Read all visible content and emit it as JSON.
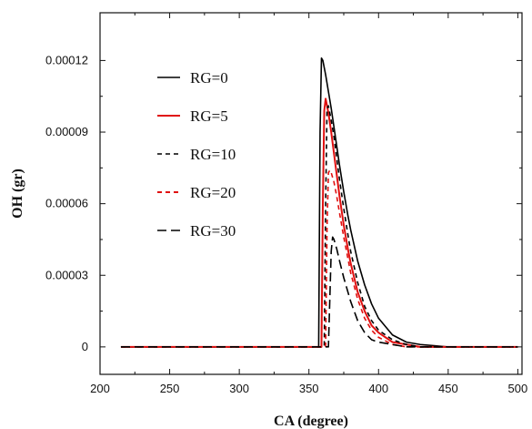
{
  "chart_data": {
    "type": "line",
    "title": "",
    "xlabel": "CA (degree)",
    "ylabel": "OH (gr)",
    "xlim": [
      200,
      503
    ],
    "ylim": [
      -1.15e-05,
      0.00014
    ],
    "x_ticks": [
      200,
      250,
      300,
      350,
      400,
      450,
      500
    ],
    "x_tick_labels": [
      "200",
      "250",
      "300",
      "350",
      "400",
      "450",
      "500"
    ],
    "y_ticks": [
      0,
      3e-05,
      6e-05,
      9e-05,
      0.00012
    ],
    "y_tick_labels": [
      "0",
      "0.00003",
      "0.00006",
      "0.00009",
      "0.00012"
    ],
    "grid": false,
    "legend_position": "top-left",
    "series": [
      {
        "name": "RG=0",
        "color": "#000000",
        "dash": "solid",
        "x": [
          215,
          250,
          300,
          350,
          357,
          358,
          359,
          360,
          362,
          364,
          366,
          368,
          370,
          372,
          375,
          378,
          380,
          385,
          390,
          395,
          400,
          410,
          420,
          430,
          440,
          450,
          470,
          500
        ],
        "y": [
          0,
          0,
          0,
          0,
          0,
          9e-05,
          0.000121,
          0.00012,
          0.000114,
          0.000107,
          0.0001,
          9.2e-05,
          8.4e-05,
          7.6e-05,
          6.5e-05,
          5.5e-05,
          4.9e-05,
          3.6e-05,
          2.6e-05,
          1.8e-05,
          1.2e-05,
          5e-06,
          2e-06,
          1e-06,
          5e-07,
          0,
          0,
          0
        ]
      },
      {
        "name": "RG=5",
        "color": "#e01010",
        "dash": "solid",
        "x": [
          215,
          250,
          300,
          350,
          359,
          360,
          361,
          362,
          364,
          366,
          368,
          370,
          372,
          375,
          378,
          380,
          385,
          390,
          395,
          400,
          410,
          420,
          430,
          450,
          500
        ],
        "y": [
          0,
          0,
          0,
          0,
          0,
          6e-05,
          9.9e-05,
          0.000104,
          9.8e-05,
          9e-05,
          8.1e-05,
          7.2e-05,
          6.3e-05,
          5.1e-05,
          4.1e-05,
          3.5e-05,
          2.3e-05,
          1.5e-05,
          9e-06,
          6e-06,
          2e-06,
          1e-06,
          0,
          0,
          0
        ]
      },
      {
        "name": "RG=10",
        "color": "#000000",
        "dash": "short-dash",
        "x": [
          215,
          250,
          300,
          350,
          361,
          362,
          363,
          364,
          366,
          368,
          370,
          372,
          375,
          378,
          380,
          385,
          390,
          395,
          400,
          410,
          420,
          430,
          450,
          500
        ],
        "y": [
          0,
          0,
          0,
          0,
          0,
          6e-05,
          0.0001,
          0.000101,
          9.5e-05,
          8.8e-05,
          7.9e-05,
          7e-05,
          5.8e-05,
          4.7e-05,
          4e-05,
          2.7e-05,
          1.7e-05,
          1.1e-05,
          7e-06,
          3e-06,
          1e-06,
          0,
          0,
          0
        ]
      },
      {
        "name": "RG=20",
        "color": "#e01010",
        "dash": "short-dash",
        "x": [
          215,
          250,
          300,
          350,
          362,
          363,
          364,
          365,
          366,
          368,
          370,
          372,
          375,
          378,
          380,
          385,
          390,
          395,
          400,
          410,
          420,
          450,
          500
        ],
        "y": [
          0,
          0,
          0,
          0,
          0,
          5e-05,
          7.3e-05,
          7.4e-05,
          7.3e-05,
          6.9e-05,
          6.3e-05,
          5.6e-05,
          4.6e-05,
          3.7e-05,
          3.1e-05,
          2e-05,
          1.2e-05,
          7e-06,
          4e-06,
          1e-06,
          0,
          0,
          0
        ]
      },
      {
        "name": "RG=30",
        "color": "#000000",
        "dash": "long-dash",
        "x": [
          215,
          250,
          300,
          350,
          364,
          365,
          366,
          367,
          368,
          370,
          372,
          375,
          378,
          380,
          385,
          390,
          395,
          400,
          410,
          420,
          450,
          500
        ],
        "y": [
          0,
          0,
          0,
          0,
          0,
          2e-05,
          4e-05,
          4.6e-05,
          4.5e-05,
          4.1e-05,
          3.6e-05,
          2.9e-05,
          2.3e-05,
          1.9e-05,
          1.1e-05,
          6e-06,
          3e-06,
          2e-06,
          1e-06,
          0,
          0,
          0
        ]
      }
    ]
  }
}
